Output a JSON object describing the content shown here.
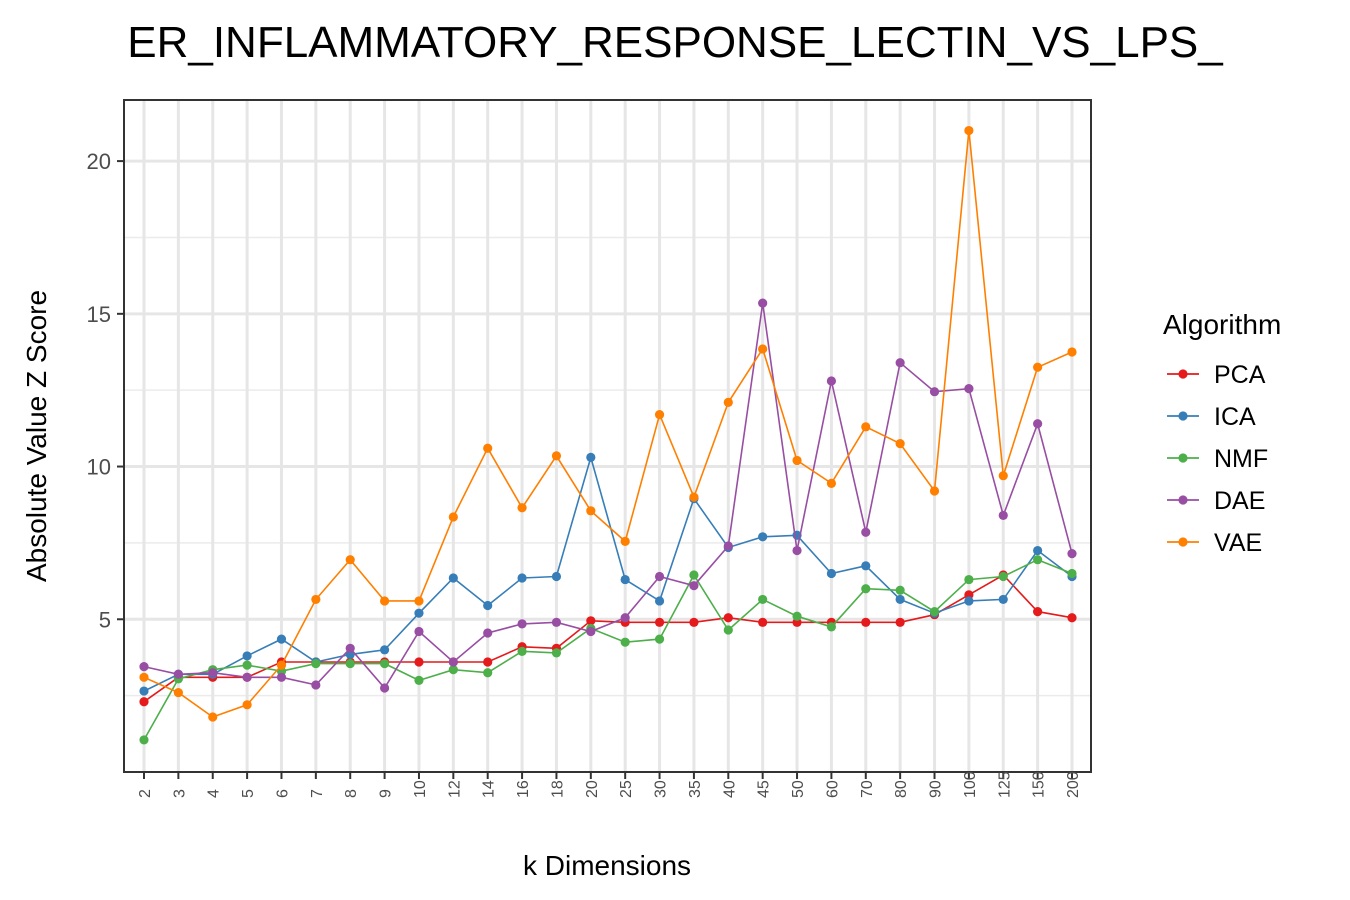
{
  "chart_data": {
    "type": "line",
    "title": "ER_INFLAMMATORY_RESPONSE_LECTIN_VS_LPS_",
    "xlabel": "k Dimensions",
    "ylabel": "Absolute Value Z Score",
    "legend_title": "Algorithm",
    "legend_position": "right",
    "grid": true,
    "ylim": [
      0,
      22
    ],
    "yticks": [
      5,
      10,
      15,
      20
    ],
    "categories": [
      "2",
      "3",
      "4",
      "5",
      "6",
      "7",
      "8",
      "9",
      "10",
      "12",
      "14",
      "16",
      "18",
      "20",
      "25",
      "30",
      "35",
      "40",
      "45",
      "50",
      "60",
      "70",
      "80",
      "90",
      "100",
      "125",
      "150",
      "200"
    ],
    "series": [
      {
        "name": "PCA",
        "color": "#E41A1C",
        "values": [
          2.3,
          3.1,
          3.1,
          3.1,
          3.6,
          3.6,
          3.6,
          3.6,
          3.6,
          3.6,
          3.6,
          4.1,
          4.05,
          4.95,
          4.9,
          4.9,
          4.9,
          5.05,
          4.9,
          4.9,
          4.9,
          4.9,
          4.9,
          5.15,
          5.8,
          6.45,
          5.25,
          5.05
        ]
      },
      {
        "name": "ICA",
        "color": "#377EB8",
        "values": [
          2.65,
          3.2,
          3.2,
          3.8,
          4.35,
          3.6,
          3.85,
          4.0,
          5.2,
          6.35,
          5.45,
          6.35,
          6.4,
          10.3,
          6.3,
          5.6,
          8.95,
          7.35,
          7.7,
          7.75,
          6.5,
          6.75,
          5.65,
          5.2,
          5.6,
          5.65,
          7.25,
          6.4
        ]
      },
      {
        "name": "NMF",
        "color": "#4DAF4A",
        "values": [
          1.05,
          3.05,
          3.35,
          3.5,
          3.3,
          3.55,
          3.55,
          3.55,
          3.0,
          3.35,
          3.25,
          3.95,
          3.9,
          4.7,
          4.25,
          4.35,
          6.45,
          4.65,
          5.65,
          5.1,
          4.75,
          6.0,
          5.95,
          5.25,
          6.3,
          6.4,
          6.95,
          6.5
        ]
      },
      {
        "name": "DAE",
        "color": "#984EA3",
        "values": [
          3.45,
          3.2,
          3.25,
          3.1,
          3.1,
          2.85,
          4.05,
          2.75,
          4.6,
          3.6,
          4.55,
          4.85,
          4.9,
          4.6,
          5.05,
          6.4,
          6.1,
          7.4,
          15.35,
          7.25,
          12.8,
          7.85,
          13.4,
          12.45,
          12.55,
          8.4,
          11.4,
          7.15
        ]
      },
      {
        "name": "VAE",
        "color": "#FF7F00",
        "values": [
          3.1,
          2.6,
          1.8,
          2.2,
          3.5,
          5.65,
          6.95,
          5.6,
          5.6,
          8.35,
          10.6,
          8.65,
          10.35,
          8.55,
          7.55,
          11.7,
          9.0,
          12.1,
          13.85,
          10.2,
          9.45,
          11.3,
          10.75,
          9.2,
          21.0,
          9.7,
          13.25,
          13.75
        ]
      }
    ]
  }
}
